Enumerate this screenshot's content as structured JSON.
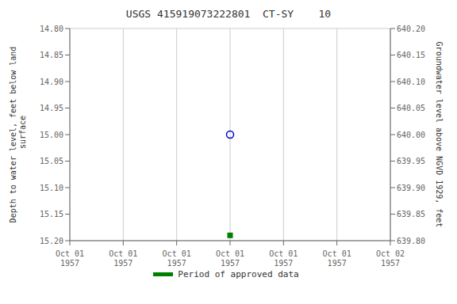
{
  "chart_data": {
    "type": "scatter",
    "title": "USGS 415919073222801  CT-SY    10",
    "y_label": "Depth to water level, feet below land\n surface",
    "y2_label": "Groundwater level above NGVD 1929, feet",
    "categories": [
      "Oct 01\n1957",
      "Oct 01\n1957",
      "Oct 01\n1957",
      "Oct 01\n1957",
      "Oct 01\n1957",
      "Oct 01\n1957",
      "Oct 02\n1957"
    ],
    "series": [
      {
        "color": "#0000cc",
        "marker": "open_circle",
        "values": [
          null,
          null,
          null,
          15.0,
          null,
          null,
          null
        ]
      },
      {
        "name": "Period of approved data",
        "color": "#008000",
        "marker": "square",
        "values": [
          null,
          null,
          null,
          15.19,
          null,
          null,
          null
        ]
      }
    ],
    "ylim": [
      15.2,
      14.8
    ],
    "yticks": [
      {
        "value": 14.8,
        "label": "14.80"
      },
      {
        "value": 14.85,
        "label": "14.85"
      },
      {
        "value": 14.9,
        "label": "14.90"
      },
      {
        "value": 14.95,
        "label": "14.95"
      },
      {
        "value": 15.0,
        "label": "15.00"
      },
      {
        "value": 15.05,
        "label": "15.05"
      },
      {
        "value": 15.1,
        "label": "15.10"
      },
      {
        "value": 15.15,
        "label": "15.15"
      },
      {
        "value": 15.2,
        "label": "15.20"
      }
    ],
    "y2lim": [
      639.8,
      640.2
    ],
    "y2ticks": [
      {
        "value": 639.8,
        "label": "639.80"
      },
      {
        "value": 639.85,
        "label": "639.85"
      },
      {
        "value": 639.9,
        "label": "639.90"
      },
      {
        "value": 639.95,
        "label": "639.95"
      },
      {
        "value": 640.0,
        "label": "640.00"
      },
      {
        "value": 640.05,
        "label": "640.05"
      },
      {
        "value": 640.1,
        "label": "640.10"
      },
      {
        "value": 640.15,
        "label": "640.15"
      },
      {
        "value": 640.2,
        "label": "640.20"
      }
    ],
    "grid": true,
    "legend": "bottom"
  }
}
